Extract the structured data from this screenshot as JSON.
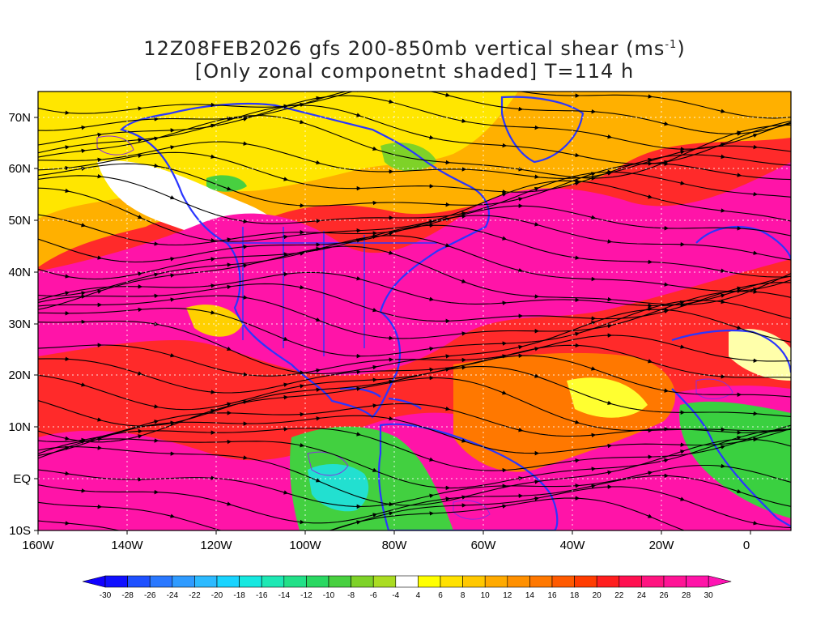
{
  "title": {
    "line1_prefix": "12Z08FEB2026 gfs 200-850mb vertical shear (ms",
    "line1_sup": "-1",
    "line1_suffix": ")",
    "line2": "[Only zonal componetnt shaded] T=114 h"
  },
  "latitude_labels": [
    "70N",
    "60N",
    "50N",
    "40N",
    "30N",
    "20N",
    "10N",
    "EQ",
    "10S"
  ],
  "longitude_labels": [
    "160W",
    "140W",
    "120W",
    "100W",
    "80W",
    "60W",
    "40W",
    "20W",
    "0"
  ],
  "colorbar": {
    "labels": [
      "-30",
      "-28",
      "-26",
      "-24",
      "-22",
      "-20",
      "-18",
      "-16",
      "-14",
      "-12",
      "-10",
      "-8",
      "-6",
      "-4",
      "4",
      "6",
      "8",
      "10",
      "12",
      "14",
      "16",
      "18",
      "20",
      "22",
      "24",
      "26",
      "28",
      "30"
    ],
    "colors": [
      "#1010ff",
      "#1e50ff",
      "#2a78ff",
      "#2f9bff",
      "#2cbaff",
      "#19d4ff",
      "#16e8e0",
      "#1ee8b4",
      "#22e088",
      "#2ad862",
      "#48d040",
      "#7ed228",
      "#aadc22",
      "#ffffff",
      "#ffff00",
      "#ffe100",
      "#ffc800",
      "#ffaa00",
      "#ff9000",
      "#ff7800",
      "#ff5a00",
      "#ff3c00",
      "#ff1e1e",
      "#ff1050",
      "#ff1480",
      "#ff1496",
      "#ff14a8"
    ],
    "under_color": "#1000ff",
    "over_color": "#ff14b4"
  },
  "map": {
    "coastline_color": "#2a36ff",
    "streamline_color": "#000000",
    "accent_contour_color": "#8a2be2"
  }
}
